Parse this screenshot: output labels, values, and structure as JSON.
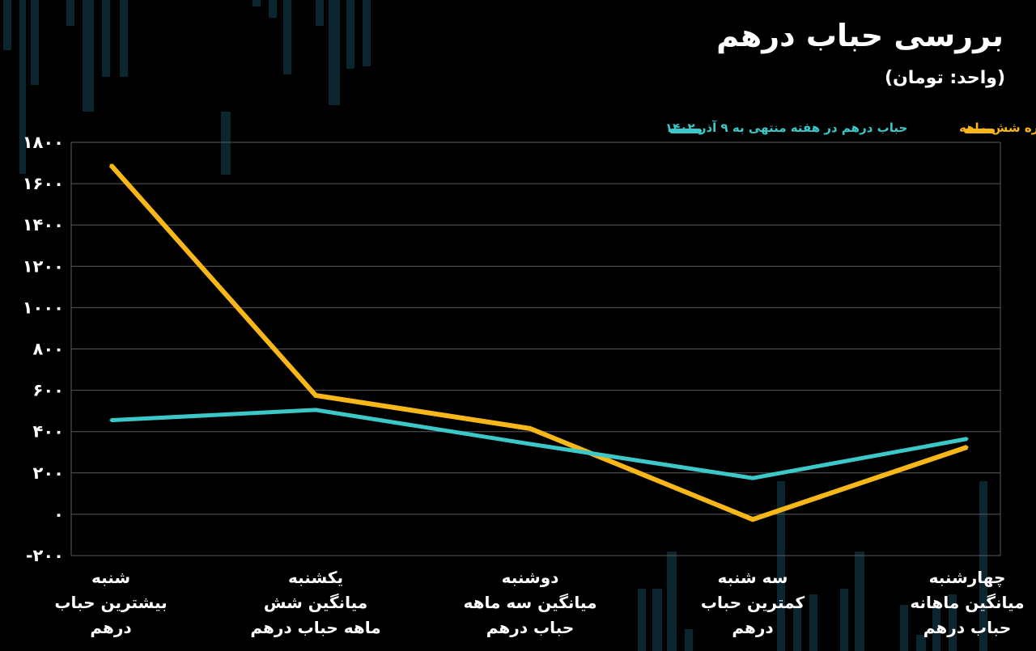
{
  "header": {
    "title": "بررسی  حباب درهم",
    "unit": "(واحد: تومان)"
  },
  "chart_data": {
    "type": "line",
    "categories": [
      [
        "شنبه",
        "بیشترین حباب",
        "درهم"
      ],
      [
        "یکشنبه",
        "میانگین شش",
        "ماهه حباب درهم"
      ],
      [
        "دوشنبه",
        "میانگین سه ماهه",
        "حباب درهم"
      ],
      [
        "سه شنبه",
        "کمترین حباب",
        "درهم"
      ],
      [
        "چهارشنبه",
        "میانگین ماهانه",
        "حباب درهم"
      ]
    ],
    "series": [
      {
        "name": "بررسی حباب درهم از بازه شش ماهه",
        "color": "#f7b718",
        "values": [
          1690,
          575,
          415,
          -25,
          325
        ]
      },
      {
        "name": "حباب درهم در هفته منتهی  به ۹ آذر  ۱۴۰۲",
        "color": "#3cc8c8",
        "values": [
          455,
          505,
          340,
          175,
          365
        ]
      }
    ],
    "yticks": [
      "۱۸۰۰",
      "۱۶۰۰",
      "۱۴۰۰",
      "۱۲۰۰",
      "۱۰۰۰",
      "۸۰۰",
      "۶۰۰",
      "۴۰۰",
      "۲۰۰",
      "۰",
      "-۲۰۰"
    ],
    "ylim": [
      -200,
      1800
    ],
    "grid": true,
    "legend": "top-right"
  }
}
